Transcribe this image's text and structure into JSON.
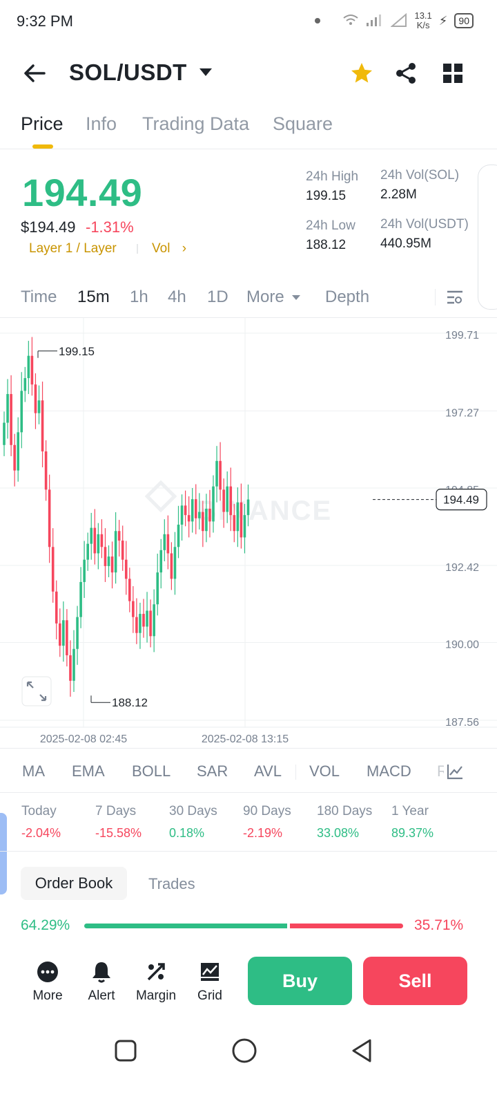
{
  "status_bar": {
    "time": "9:32 PM",
    "net_speed_value": "13.1",
    "net_speed_unit": "K/s",
    "battery": "90"
  },
  "header": {
    "pair": "SOL/USDT"
  },
  "tabs": [
    "Price",
    "Info",
    "Trading Data",
    "Square"
  ],
  "ticker": {
    "last_price": "194.49",
    "usd_price": "$194.49",
    "change_pct": "-1.31%",
    "tag_layer": "Layer 1 / Layer",
    "tag_vol": "Vol",
    "high_label": "24h High",
    "high_value": "199.15",
    "low_label": "24h Low",
    "low_value": "188.12",
    "vol_sol_label": "24h Vol(SOL)",
    "vol_sol_value": "2.28M",
    "vol_usdt_label": "24h Vol(USDT)",
    "vol_usdt_value": "440.95M"
  },
  "intervals": [
    "Time",
    "15m",
    "1h",
    "4h",
    "1D",
    "More",
    "Depth"
  ],
  "active_interval": "15m",
  "chart_data": {
    "type": "candlestick",
    "title": "",
    "y_ticks": [
      199.71,
      197.27,
      194.85,
      192.42,
      190.0,
      187.56
    ],
    "ylim": [
      187.56,
      199.71
    ],
    "x_ticks": [
      "2025-02-08 02:45",
      "2025-02-08 13:15"
    ],
    "high_marker": 199.15,
    "low_marker": 188.12,
    "current_price_label": "194.49",
    "watermark": "BINANCE",
    "up_color": "#2ebd85",
    "down_color": "#f6465d",
    "candles_approx_close": [
      196.9,
      197.8,
      196.2,
      195.4,
      196.6,
      197.9,
      198.3,
      199.0,
      198.1,
      197.2,
      197.6,
      196.0,
      194.8,
      193.0,
      191.6,
      190.6,
      189.9,
      190.7,
      189.6,
      188.8,
      189.8,
      190.8,
      191.9,
      192.6,
      193.1,
      193.6,
      192.8,
      193.4,
      193.0,
      192.4,
      192.7,
      192.2,
      193.5,
      193.2,
      192.6,
      192.0,
      191.3,
      190.8,
      190.3,
      190.9,
      190.5,
      191.0,
      190.2,
      191.2,
      192.2,
      192.9,
      193.4,
      192.8,
      192.0,
      193.0,
      193.7,
      194.3,
      194.0,
      193.8,
      194.5,
      193.9,
      194.1,
      193.5,
      194.2,
      193.8,
      194.9,
      195.7,
      194.8,
      194.1,
      194.9,
      194.0,
      193.5,
      194.4,
      193.3,
      194.0,
      194.49
    ]
  },
  "indicators": [
    "MA",
    "EMA",
    "BOLL",
    "SAR",
    "AVL",
    "VOL",
    "MACD",
    "RSI"
  ],
  "performance": [
    {
      "label": "Today",
      "value": "-2.04%",
      "trend": "down"
    },
    {
      "label": "7 Days",
      "value": "-15.58%",
      "trend": "down"
    },
    {
      "label": "30 Days",
      "value": "0.18%",
      "trend": "up"
    },
    {
      "label": "90 Days",
      "value": "-2.19%",
      "trend": "down"
    },
    {
      "label": "180 Days",
      "value": "33.08%",
      "trend": "up"
    },
    {
      "label": "1 Year",
      "value": "89.37%",
      "trend": "up"
    }
  ],
  "orderbook": {
    "tab_orderbook": "Order Book",
    "tab_trades": "Trades",
    "bid_pct": "64.29%",
    "ask_pct": "35.71%",
    "bid_fraction": 0.6429
  },
  "actions": {
    "more": "More",
    "alert": "Alert",
    "margin": "Margin",
    "grid": "Grid",
    "buy": "Buy",
    "sell": "Sell"
  }
}
